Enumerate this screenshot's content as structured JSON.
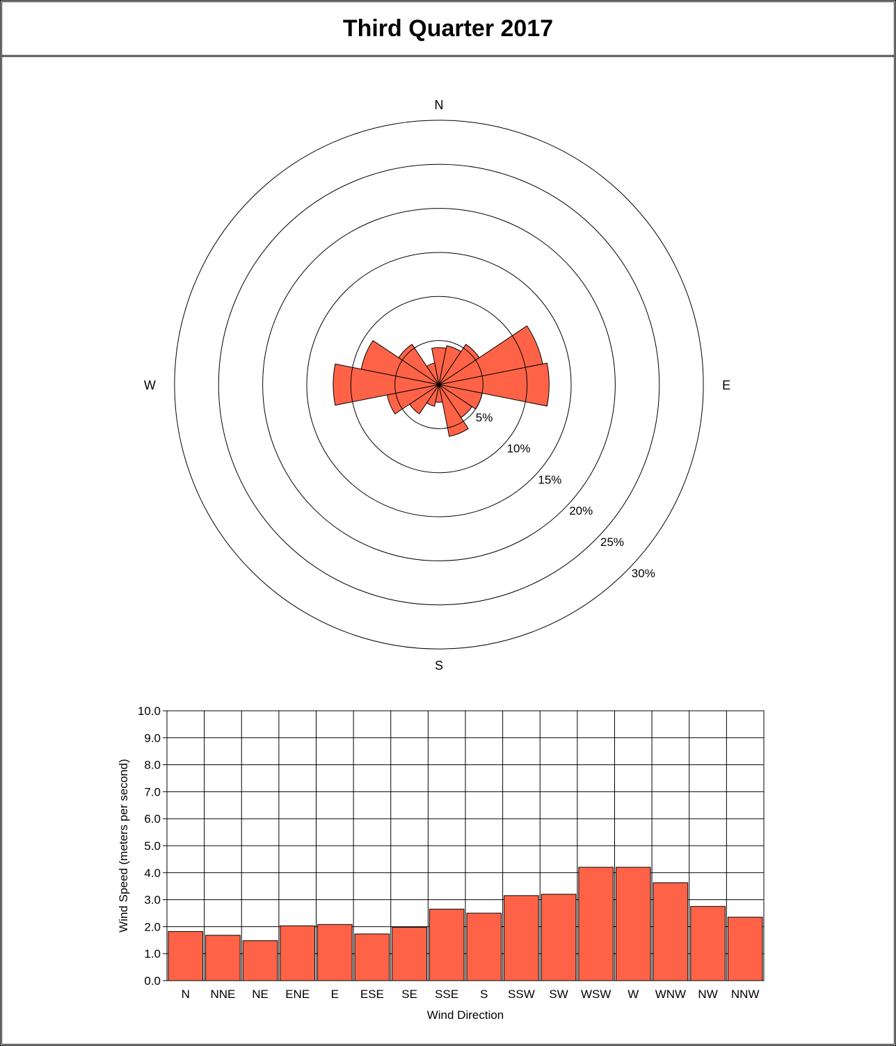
{
  "title": "Third Quarter 2017",
  "colors": {
    "bar_fill": "#FF6347",
    "line": "#000000"
  },
  "chart_data": [
    {
      "type": "wind-rose",
      "directions": [
        "N",
        "NNE",
        "NE",
        "ENE",
        "E",
        "ESE",
        "SE",
        "SSE",
        "S",
        "SSW",
        "SW",
        "WSW",
        "W",
        "WNW",
        "NW",
        "NNW"
      ],
      "compass_labels": {
        "N": "N",
        "E": "E",
        "S": "S",
        "W": "W"
      },
      "ring_values": [
        5,
        10,
        15,
        20,
        25,
        30
      ],
      "ring_labels": [
        "5%",
        "10%",
        "15%",
        "20%",
        "25%",
        "30%"
      ],
      "values": [
        4.2,
        4.5,
        5.5,
        12.0,
        12.5,
        5.0,
        4.5,
        6.0,
        2.0,
        2.5,
        4.0,
        6.0,
        12.0,
        9.0,
        5.5,
        2.5
      ]
    },
    {
      "type": "bar",
      "categories": [
        "N",
        "NNE",
        "NE",
        "ENE",
        "E",
        "ESE",
        "SE",
        "SSE",
        "S",
        "SSW",
        "SW",
        "WSW",
        "W",
        "WNW",
        "NW",
        "NNW"
      ],
      "values": [
        1.82,
        1.68,
        1.48,
        2.03,
        2.08,
        1.73,
        1.98,
        2.65,
        2.5,
        3.15,
        3.2,
        4.2,
        4.2,
        3.63,
        2.75,
        2.35
      ],
      "xlabel": "Wind Direction",
      "ylabel": "Wind Speed (meters per second)",
      "ylim": [
        0,
        10
      ],
      "yticks": [
        "0.0",
        "1.0",
        "2.0",
        "3.0",
        "4.0",
        "5.0",
        "6.0",
        "7.0",
        "8.0",
        "9.0",
        "10.0"
      ],
      "grid": true
    }
  ]
}
